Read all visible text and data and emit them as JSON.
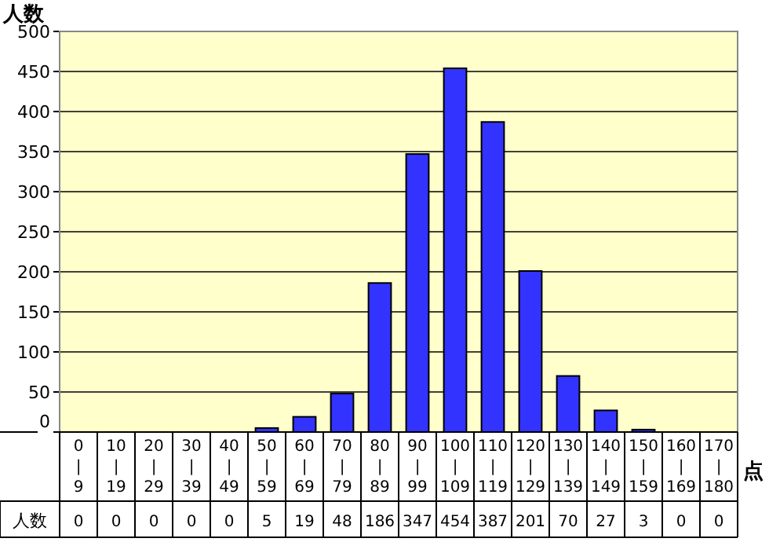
{
  "chart_data": {
    "type": "bar",
    "ylabel": "人数",
    "xlabel": "点",
    "categories": [
      "0\n|\n9",
      "10\n|\n19",
      "20\n|\n29",
      "30\n|\n39",
      "40\n|\n49",
      "50\n|\n59",
      "60\n|\n69",
      "70\n|\n79",
      "80\n|\n89",
      "90\n|\n99",
      "100\n|\n109",
      "110\n|\n119",
      "120\n|\n129",
      "130\n|\n139",
      "140\n|\n149",
      "150\n|\n159",
      "160\n|\n169",
      "170\n|\n180"
    ],
    "values": [
      0,
      0,
      0,
      0,
      0,
      5,
      19,
      48,
      186,
      347,
      454,
      387,
      201,
      70,
      27,
      3,
      0,
      0
    ],
    "color": "#3333ff",
    "ylim": [
      0,
      500
    ],
    "yticks": [
      0,
      50,
      100,
      150,
      200,
      250,
      300,
      350,
      400,
      450,
      500
    ],
    "grid": "y",
    "data_labels": true,
    "annotations": [
      "人数"
    ]
  }
}
